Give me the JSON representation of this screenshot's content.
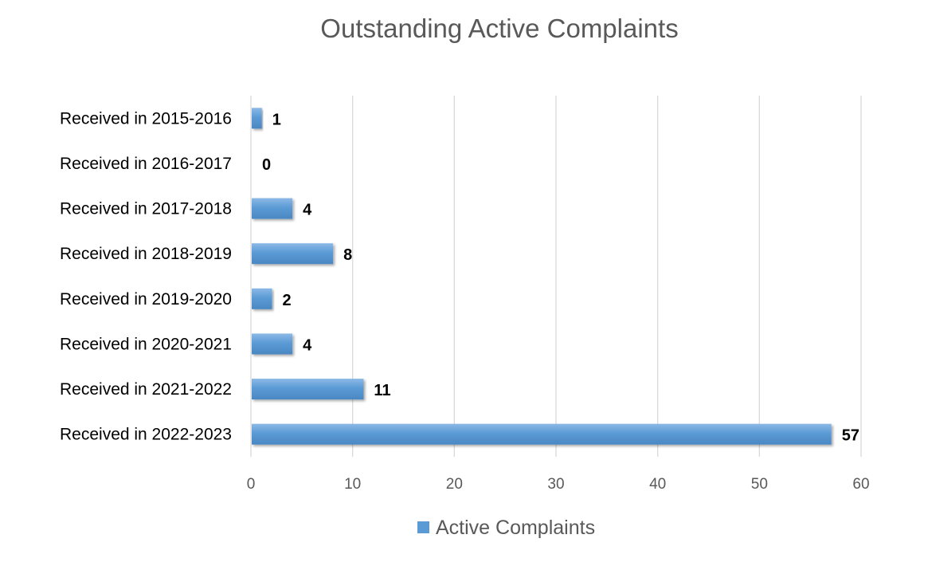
{
  "chart_data": {
    "type": "bar",
    "orientation": "horizontal",
    "title": "Outstanding Active Complaints",
    "categories": [
      "Received in 2015-2016",
      "Received in 2016-2017",
      "Received in 2017-2018",
      "Received in 2018-2019",
      "Received in 2019-2020",
      "Received in 2020-2021",
      "Received in 2021-2022",
      "Received in 2022-2023"
    ],
    "series": [
      {
        "name": "Active Complaints",
        "values": [
          1,
          0,
          4,
          8,
          2,
          4,
          11,
          57
        ],
        "color": "#5b9bd5"
      }
    ],
    "xlim": [
      0,
      60
    ],
    "xticks": [
      0,
      10,
      20,
      30,
      40,
      50,
      60
    ],
    "grid": true,
    "legend": "bottom",
    "data_labels": true
  }
}
